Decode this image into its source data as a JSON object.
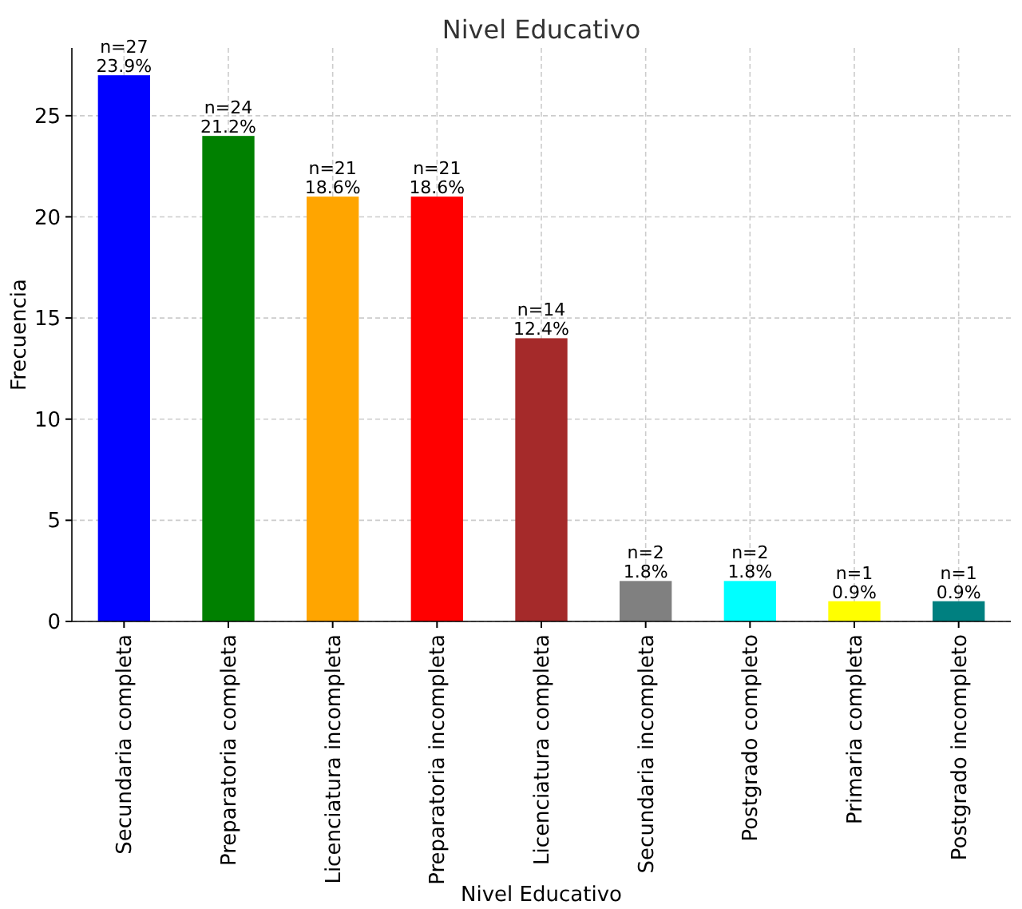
{
  "chart_data": {
    "type": "bar",
    "title": "Nivel Educativo",
    "xlabel": "Nivel Educativo",
    "ylabel": "Frecuencia",
    "categories": [
      "Secundaria completa",
      "Preparatoria completa",
      "Licenciatura incompleta",
      "Preparatoria incompleta",
      "Licenciatura completa",
      "Secundaria incompleta",
      "Postgrado completo",
      "Primaria completa",
      "Postgrado incompleto"
    ],
    "values": [
      27,
      24,
      21,
      21,
      14,
      2,
      2,
      1,
      1
    ],
    "colors": [
      "#0000ff",
      "#008000",
      "#ffa500",
      "#ff0000",
      "#a52a2a",
      "#808080",
      "#00ffff",
      "#ffff00",
      "#008080"
    ],
    "value_labels": [
      "n=27\n23.9%",
      "n=24\n21.2%",
      "n=21\n18.6%",
      "n=21\n18.6%",
      "n=14\n12.4%",
      "n=2\n1.8%",
      "n=2\n1.8%",
      "n=1\n0.9%",
      "n=1\n0.9%"
    ],
    "ylim": [
      0,
      28.35
    ],
    "yticks": [
      0,
      5,
      10,
      15,
      20,
      25
    ],
    "grid": true
  }
}
